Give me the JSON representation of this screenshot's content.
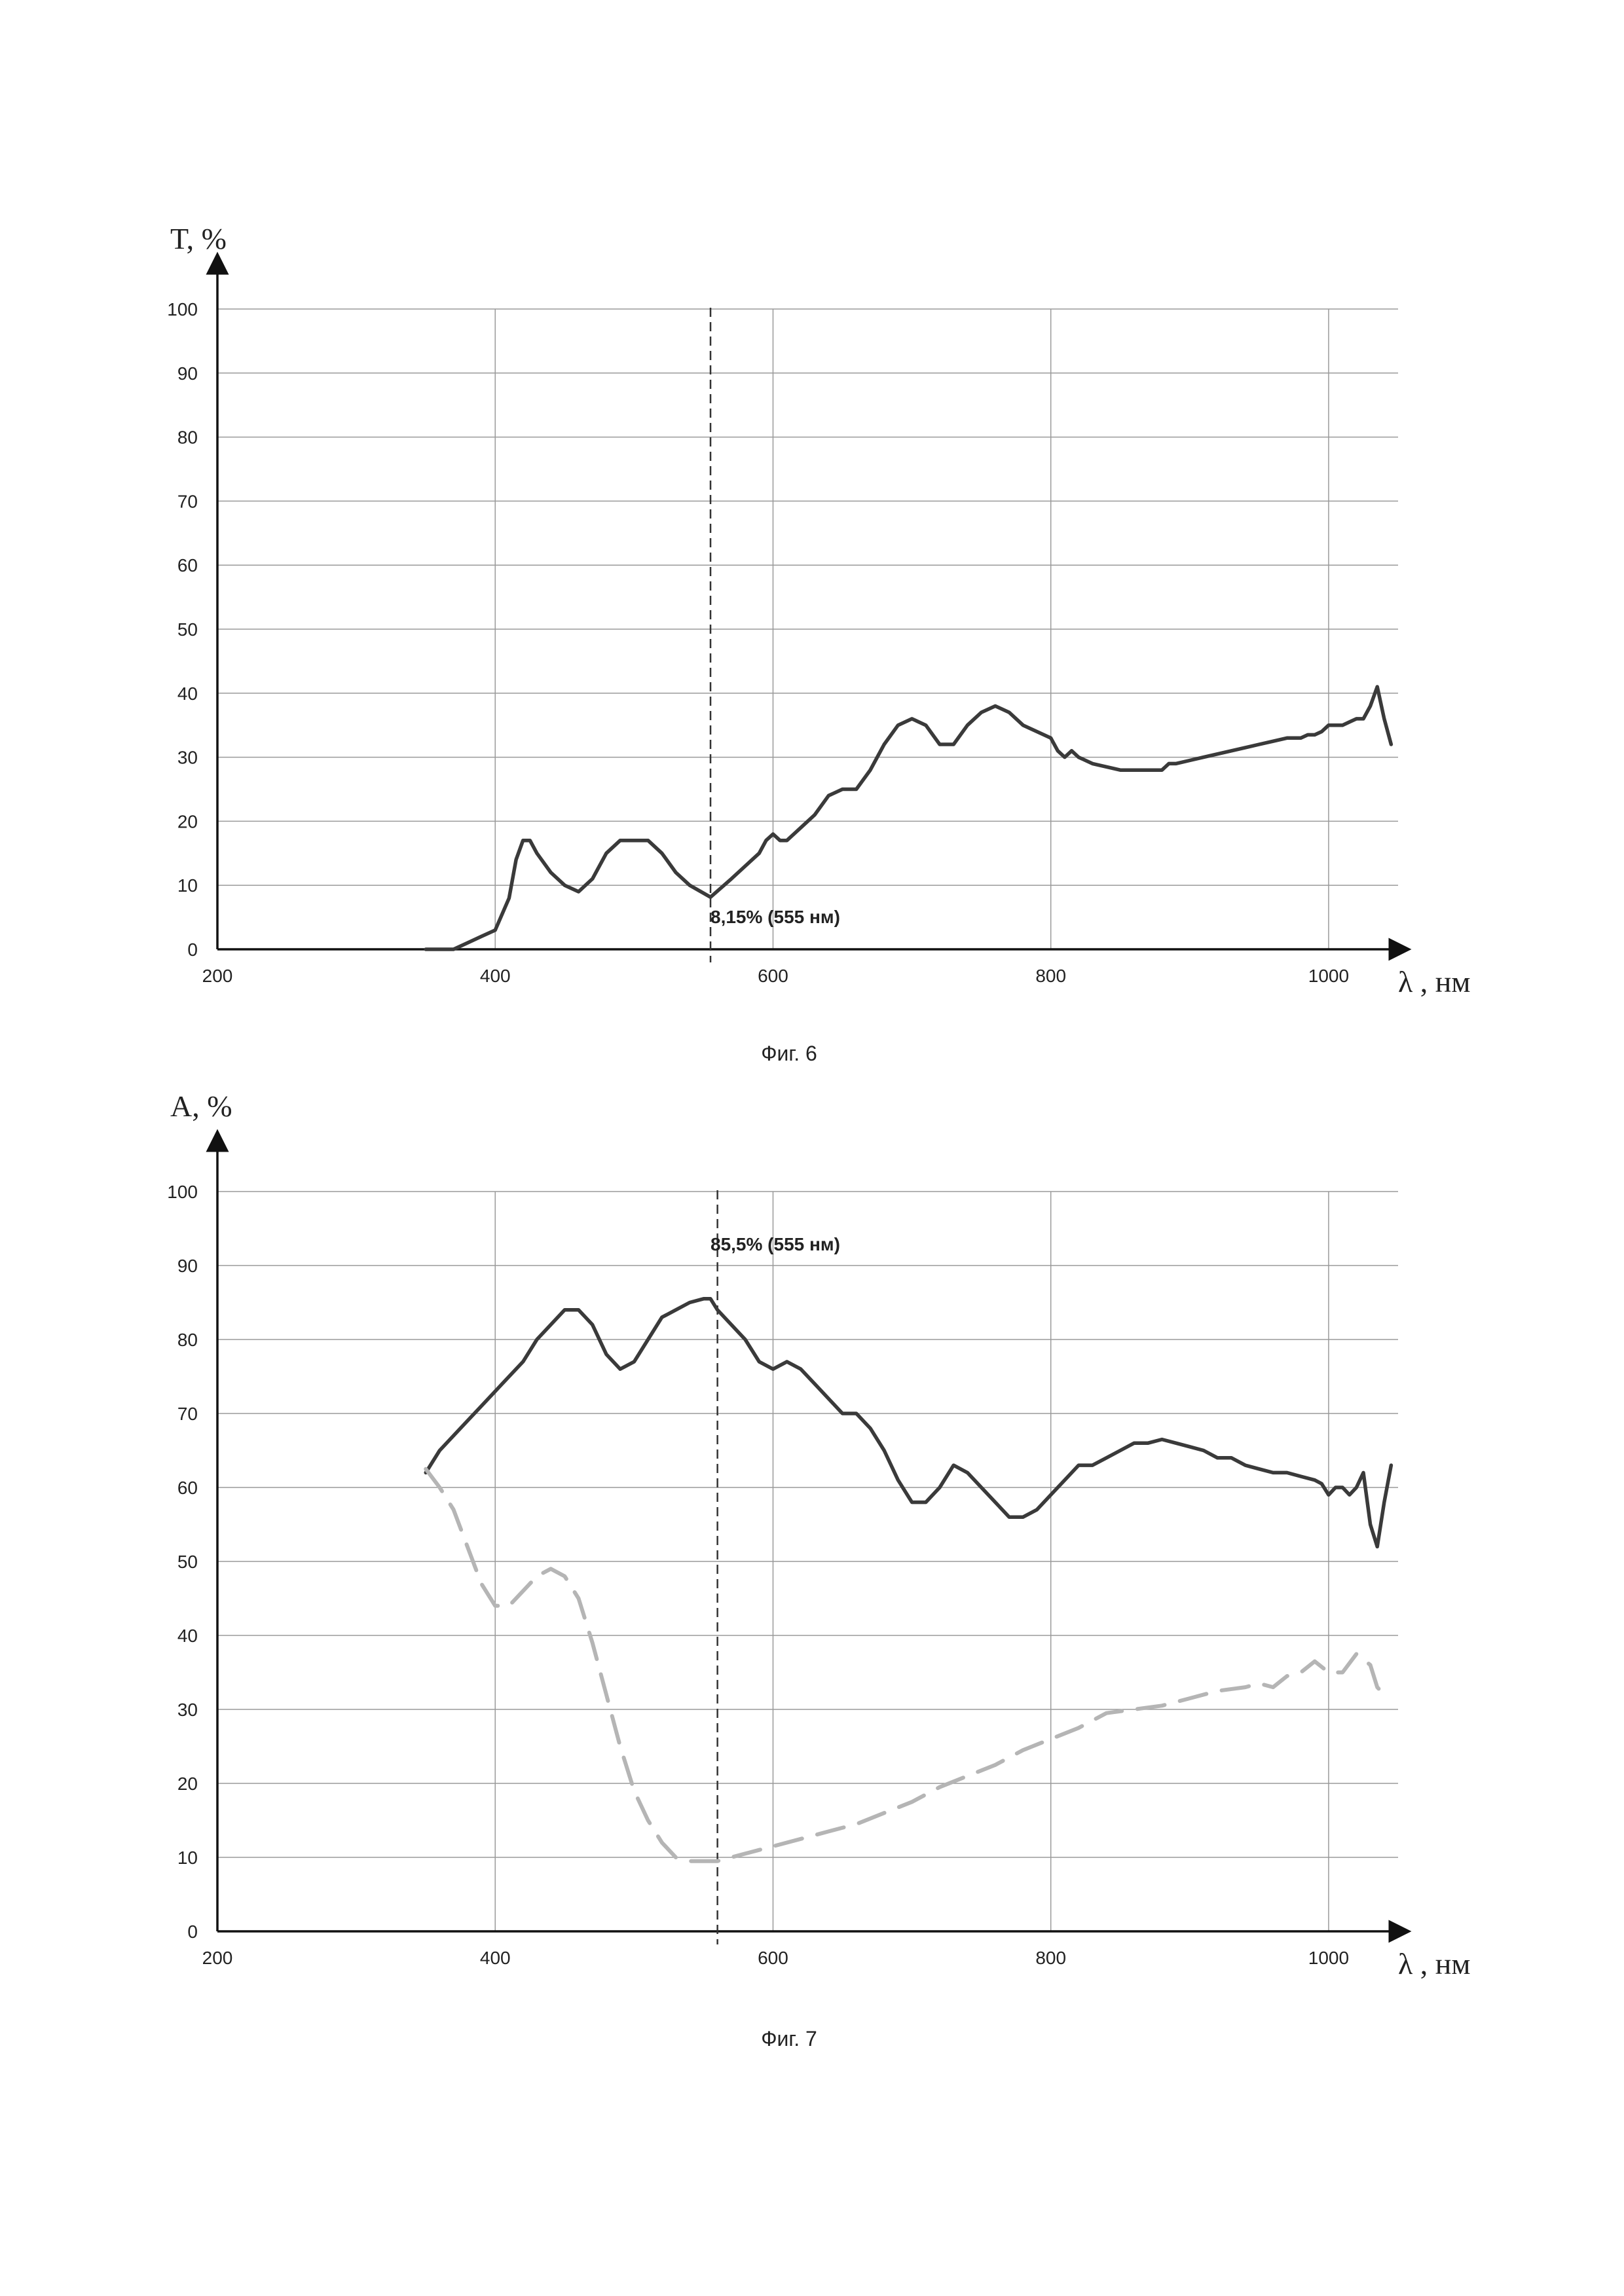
{
  "chart_data": [
    {
      "type": "line",
      "figure_label": "Фиг. 6",
      "ylabel": "T, %",
      "xlabel": "λ , нм",
      "xlim": [
        200,
        1050
      ],
      "ylim": [
        0,
        100
      ],
      "x_ticks": [
        200,
        400,
        600,
        800,
        1000
      ],
      "y_ticks": [
        0,
        10,
        20,
        30,
        40,
        50,
        60,
        70,
        80,
        90,
        100
      ],
      "grid": true,
      "marker_x": 555,
      "annotation": "8,15% (555 нм)",
      "series": [
        {
          "style": "solid",
          "color": "#3a3a3a",
          "x": [
            350,
            370,
            380,
            390,
            400,
            410,
            415,
            420,
            425,
            430,
            440,
            450,
            460,
            470,
            480,
            490,
            500,
            510,
            520,
            530,
            540,
            555,
            570,
            580,
            590,
            595,
            600,
            605,
            610,
            620,
            630,
            640,
            650,
            660,
            670,
            680,
            690,
            700,
            710,
            720,
            730,
            740,
            750,
            760,
            770,
            780,
            790,
            800,
            805,
            810,
            815,
            820,
            830,
            840,
            850,
            860,
            870,
            880,
            885,
            890,
            900,
            910,
            920,
            930,
            940,
            950,
            960,
            970,
            980,
            985,
            990,
            995,
            1000,
            1005,
            1010,
            1015,
            1020,
            1025,
            1030,
            1035,
            1040,
            1045
          ],
          "y": [
            0,
            0,
            1,
            2,
            3,
            8,
            14,
            17,
            17,
            15,
            12,
            10,
            9,
            11,
            15,
            17,
            17,
            17,
            15,
            12,
            10,
            8.15,
            11,
            13,
            15,
            17,
            18,
            17,
            17,
            19,
            21,
            24,
            25,
            25,
            28,
            32,
            35,
            36,
            35,
            32,
            32,
            35,
            37,
            38,
            37,
            35,
            34,
            33,
            31,
            30,
            31,
            30,
            29,
            28.5,
            28,
            28,
            28,
            28,
            29,
            29,
            29.5,
            30,
            30.5,
            31,
            31.5,
            32,
            32.5,
            33,
            33,
            33.5,
            33.5,
            34,
            35,
            35,
            35,
            35.5,
            36,
            36,
            38,
            41,
            36,
            32
          ]
        }
      ]
    },
    {
      "type": "line",
      "figure_label": "Фиг. 7",
      "ylabel": "A, %",
      "xlabel": "λ , нм",
      "xlim": [
        200,
        1050
      ],
      "ylim": [
        0,
        100
      ],
      "x_ticks": [
        200,
        400,
        600,
        800,
        1000
      ],
      "y_ticks": [
        0,
        10,
        20,
        30,
        40,
        50,
        60,
        70,
        80,
        90,
        100
      ],
      "grid": true,
      "marker_x": 560,
      "annotation": "85,5% (555 нм)",
      "series": [
        {
          "style": "solid",
          "color": "#3a3a3a",
          "x": [
            350,
            360,
            370,
            380,
            390,
            400,
            410,
            420,
            430,
            440,
            450,
            460,
            470,
            480,
            490,
            500,
            510,
            520,
            530,
            540,
            550,
            555,
            560,
            570,
            580,
            590,
            600,
            610,
            620,
            630,
            640,
            650,
            660,
            670,
            680,
            690,
            700,
            710,
            720,
            730,
            740,
            750,
            760,
            770,
            780,
            790,
            800,
            810,
            820,
            830,
            840,
            850,
            860,
            870,
            880,
            890,
            900,
            910,
            920,
            930,
            940,
            950,
            960,
            970,
            980,
            990,
            995,
            1000,
            1005,
            1010,
            1015,
            1020,
            1025,
            1030,
            1035,
            1040,
            1045
          ],
          "y": [
            62,
            65,
            67,
            69,
            71,
            73,
            75,
            77,
            80,
            82,
            84,
            84,
            82,
            78,
            76,
            77,
            80,
            83,
            84,
            85,
            85.5,
            85.5,
            84,
            82,
            80,
            77,
            76,
            77,
            76,
            74,
            72,
            70,
            70,
            68,
            65,
            61,
            58,
            58,
            60,
            63,
            62,
            60,
            58,
            56,
            56,
            57,
            59,
            61,
            63,
            63,
            64,
            65,
            66,
            66,
            66.5,
            66,
            65.5,
            65,
            64,
            64,
            63,
            62.5,
            62,
            62,
            61.5,
            61,
            60.5,
            59,
            60,
            60,
            59,
            60,
            62,
            55,
            52,
            58,
            63
          ]
        },
        {
          "style": "dashed",
          "color": "#b5b5b5",
          "x": [
            350,
            360,
            370,
            380,
            390,
            400,
            410,
            420,
            430,
            440,
            450,
            460,
            470,
            480,
            490,
            500,
            510,
            520,
            530,
            540,
            550,
            560,
            570,
            580,
            590,
            600,
            620,
            640,
            660,
            680,
            700,
            720,
            740,
            760,
            780,
            800,
            820,
            840,
            860,
            880,
            900,
            920,
            940,
            950,
            960,
            970,
            980,
            990,
            1000,
            1010,
            1020,
            1030,
            1035,
            1040,
            1045
          ],
          "y": [
            62.5,
            60,
            57,
            52,
            47,
            44,
            44,
            46,
            48,
            49,
            48,
            45,
            39,
            32,
            25,
            19,
            15,
            12,
            10,
            9.5,
            9.5,
            9.5,
            10,
            10.5,
            11,
            11.5,
            12.5,
            13.5,
            14.5,
            16,
            17.5,
            19.5,
            21,
            22.5,
            24.5,
            26,
            27.5,
            29.5,
            30,
            30.5,
            31.5,
            32.5,
            33,
            33.5,
            33,
            34.5,
            35,
            36.5,
            35,
            35,
            37.5,
            36,
            33,
            32,
            32
          ]
        }
      ]
    }
  ]
}
